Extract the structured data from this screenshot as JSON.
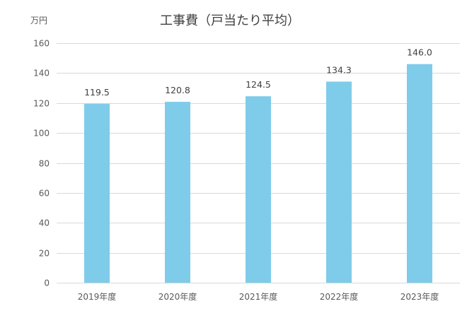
{
  "chart_data": {
    "type": "bar",
    "title": "工事費（戸当たり平均）",
    "ylabel": "万円",
    "xlabel": "",
    "categories": [
      "2019年度",
      "2020年度",
      "2021年度",
      "2022年度",
      "2023年度"
    ],
    "values": [
      119.5,
      120.8,
      124.5,
      134.3,
      146.0
    ],
    "value_labels": [
      "119.5",
      "120.8",
      "124.5",
      "134.3",
      "146.0"
    ],
    "yticks": [
      0,
      20,
      40,
      60,
      80,
      100,
      120,
      140,
      160
    ],
    "ylim": [
      0,
      160
    ],
    "grid": true,
    "legend": "none",
    "bar_color": "#7FCBEA",
    "grid_color": "#D9D9D9"
  }
}
